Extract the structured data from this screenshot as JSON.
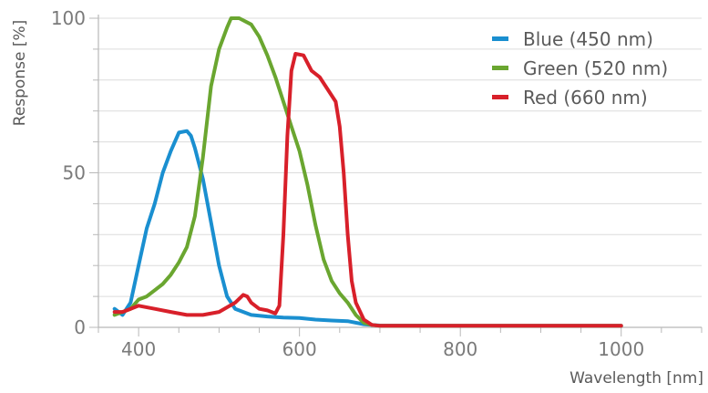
{
  "chart_data": {
    "type": "line",
    "title": "",
    "xlabel": "Wavelength [nm]",
    "ylabel": "Response [%]",
    "xlim": [
      350,
      1100
    ],
    "ylim": [
      0,
      100
    ],
    "x_ticks": [
      400,
      600,
      800,
      1000
    ],
    "x_minor_step": 50,
    "y_ticks": [
      0,
      50,
      100
    ],
    "y_minor_step": 10,
    "grid": true,
    "legend_position": "top-right",
    "series": [
      {
        "name": "Blue (450 nm)",
        "color": "#1a8fd0",
        "points": [
          [
            370,
            6
          ],
          [
            380,
            4
          ],
          [
            390,
            8
          ],
          [
            400,
            20
          ],
          [
            410,
            32
          ],
          [
            420,
            40
          ],
          [
            430,
            50
          ],
          [
            440,
            57
          ],
          [
            450,
            63
          ],
          [
            460,
            63.5
          ],
          [
            465,
            62
          ],
          [
            470,
            58
          ],
          [
            480,
            48
          ],
          [
            490,
            34
          ],
          [
            500,
            20
          ],
          [
            510,
            10
          ],
          [
            520,
            6
          ],
          [
            540,
            4
          ],
          [
            560,
            3.5
          ],
          [
            580,
            3.2
          ],
          [
            600,
            3
          ],
          [
            620,
            2.5
          ],
          [
            640,
            2.2
          ],
          [
            660,
            2
          ],
          [
            680,
            1
          ],
          [
            700,
            0.6
          ],
          [
            800,
            0.5
          ],
          [
            900,
            0.5
          ],
          [
            1000,
            0.5
          ]
        ]
      },
      {
        "name": "Green (520 nm)",
        "color": "#6aa630",
        "points": [
          [
            370,
            4
          ],
          [
            380,
            5
          ],
          [
            390,
            6
          ],
          [
            400,
            9
          ],
          [
            410,
            10
          ],
          [
            420,
            12
          ],
          [
            430,
            14
          ],
          [
            440,
            17
          ],
          [
            450,
            21
          ],
          [
            460,
            26
          ],
          [
            470,
            36
          ],
          [
            480,
            55
          ],
          [
            490,
            78
          ],
          [
            500,
            90
          ],
          [
            510,
            97
          ],
          [
            515,
            100
          ],
          [
            525,
            100
          ],
          [
            540,
            98
          ],
          [
            550,
            94
          ],
          [
            560,
            88
          ],
          [
            570,
            81
          ],
          [
            580,
            73
          ],
          [
            590,
            65
          ],
          [
            600,
            57
          ],
          [
            610,
            46
          ],
          [
            620,
            33
          ],
          [
            630,
            22
          ],
          [
            640,
            15
          ],
          [
            650,
            11
          ],
          [
            660,
            8
          ],
          [
            670,
            4
          ],
          [
            680,
            1.5
          ],
          [
            690,
            0.8
          ],
          [
            700,
            0.5
          ],
          [
            800,
            0.5
          ],
          [
            900,
            0.5
          ],
          [
            1000,
            0.5
          ]
        ]
      },
      {
        "name": "Red (660 nm)",
        "color": "#d8202a",
        "points": [
          [
            370,
            5
          ],
          [
            380,
            5
          ],
          [
            390,
            6
          ],
          [
            400,
            7
          ],
          [
            420,
            6
          ],
          [
            440,
            5
          ],
          [
            460,
            4
          ],
          [
            480,
            4
          ],
          [
            500,
            5
          ],
          [
            520,
            8
          ],
          [
            530,
            10.5
          ],
          [
            535,
            10
          ],
          [
            540,
            8
          ],
          [
            550,
            6
          ],
          [
            560,
            5.5
          ],
          [
            570,
            4.5
          ],
          [
            575,
            7
          ],
          [
            580,
            30
          ],
          [
            585,
            62
          ],
          [
            590,
            83
          ],
          [
            595,
            88.5
          ],
          [
            605,
            88
          ],
          [
            615,
            83
          ],
          [
            625,
            81
          ],
          [
            635,
            77
          ],
          [
            645,
            73
          ],
          [
            650,
            65
          ],
          [
            655,
            50
          ],
          [
            660,
            30
          ],
          [
            665,
            15
          ],
          [
            670,
            8
          ],
          [
            680,
            2.5
          ],
          [
            690,
            0.8
          ],
          [
            700,
            0.5
          ],
          [
            800,
            0.5
          ],
          [
            900,
            0.5
          ],
          [
            1000,
            0.5
          ]
        ]
      }
    ]
  }
}
